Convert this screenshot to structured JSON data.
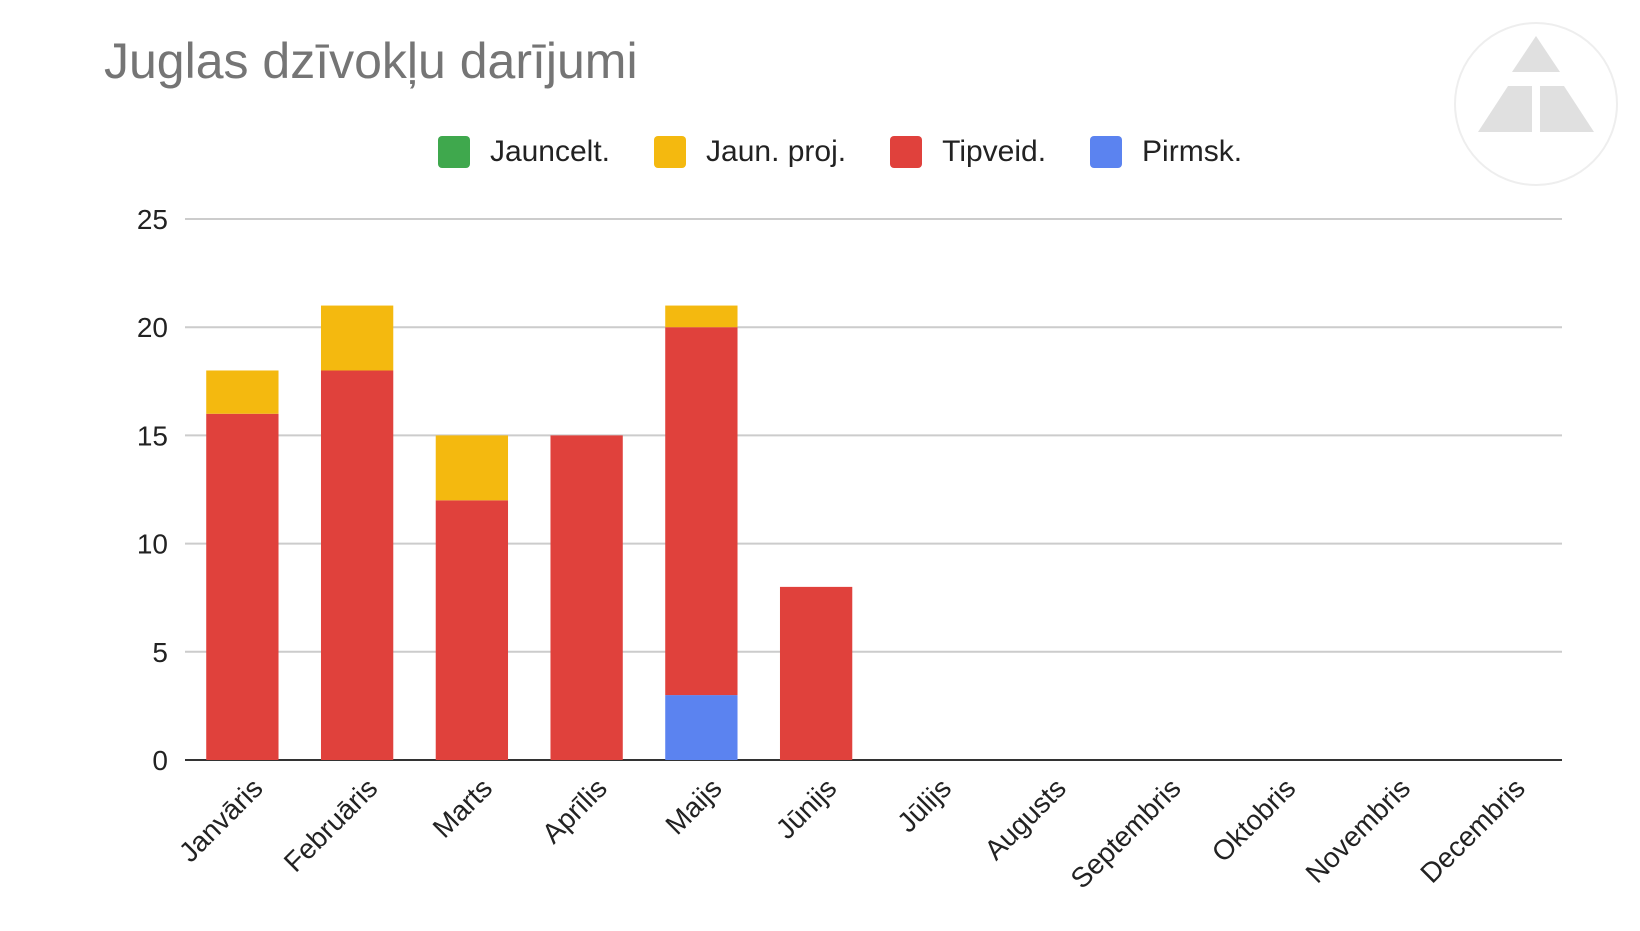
{
  "chart_data": {
    "type": "bar",
    "stacked": true,
    "title": "Juglas dzīvokļu darījumi",
    "xlabel": "",
    "ylabel": "",
    "ylim": [
      0,
      25
    ],
    "yticks": [
      0,
      5,
      10,
      15,
      20,
      25
    ],
    "grid": true,
    "legend_position": "top",
    "categories": [
      "Janvāris",
      "Februāris",
      "Marts",
      "Aprīlis",
      "Maijs",
      "Jūnijs",
      "Jūlijs",
      "Augusts",
      "Septembris",
      "Oktobris",
      "Novembris",
      "Decembris"
    ],
    "series": [
      {
        "name": "Pirmsk.",
        "color": "#5B83F0",
        "values": [
          0,
          0,
          0,
          0,
          3,
          0,
          0,
          0,
          0,
          0,
          0,
          0
        ]
      },
      {
        "name": "Tipveid.",
        "color": "#E0413C",
        "values": [
          16,
          18,
          12,
          15,
          17,
          8,
          0,
          0,
          0,
          0,
          0,
          0
        ]
      },
      {
        "name": "Jaun. proj.",
        "color": "#F4B90F",
        "values": [
          2,
          3,
          3,
          0,
          1,
          0,
          0,
          0,
          0,
          0,
          0,
          0
        ]
      },
      {
        "name": "Jauncelt.",
        "color": "#3FA84D",
        "values": [
          0,
          0,
          0,
          0,
          0,
          0,
          0,
          0,
          0,
          0,
          0,
          0
        ]
      }
    ],
    "legend_order": [
      "Jauncelt.",
      "Jaun. proj.",
      "Tipveid.",
      "Pirmsk."
    ]
  },
  "logo": {
    "name": "triangle-logo-icon"
  }
}
